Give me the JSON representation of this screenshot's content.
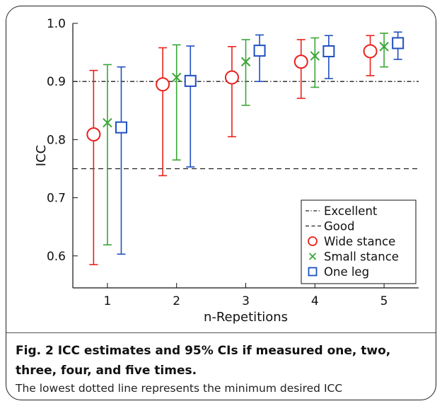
{
  "caption": {
    "title": "Fig. 2   ICC estimates and 95% CIs if measured one, two, three, four, and five times.",
    "note": "The lowest dotted line represents the minimum desired ICC"
  },
  "chart_data": {
    "type": "scatter",
    "xlabel": "n-Repetitions",
    "ylabel": "ICC",
    "x_ticks": [
      1,
      2,
      3,
      4,
      5
    ],
    "y_ticks": [
      0.6,
      0.7,
      0.8,
      0.9,
      1.0
    ],
    "y_tick_labels": [
      "0.6",
      "0.7",
      "0.8",
      "0.9",
      "1.0"
    ],
    "xlim": [
      0.5,
      5.5
    ],
    "ylim": [
      0.545,
      1.0
    ],
    "grid": false,
    "legend_position": "bottom-right",
    "reference_lines": [
      {
        "name": "Excellent",
        "y": 0.9,
        "style": "dash-dot",
        "color": "#222222"
      },
      {
        "name": "Good",
        "y": 0.75,
        "style": "dashed",
        "color": "#222222"
      }
    ],
    "series": [
      {
        "name": "Wide stance",
        "marker": "circle",
        "color": "#e8211d",
        "x_offset": -0.2,
        "x": [
          1,
          2,
          3,
          4,
          5
        ],
        "values": [
          0.809,
          0.895,
          0.907,
          0.934,
          0.952
        ],
        "ci_lower": [
          0.585,
          0.738,
          0.805,
          0.871,
          0.91
        ],
        "ci_upper": [
          0.919,
          0.958,
          0.96,
          0.972,
          0.979
        ]
      },
      {
        "name": "Small stance",
        "marker": "x",
        "color": "#3aa636",
        "x_offset": 0,
        "x": [
          1,
          2,
          3,
          4,
          5
        ],
        "values": [
          0.829,
          0.907,
          0.934,
          0.944,
          0.96
        ],
        "ci_lower": [
          0.619,
          0.765,
          0.859,
          0.89,
          0.925
        ],
        "ci_upper": [
          0.929,
          0.963,
          0.972,
          0.975,
          0.983
        ]
      },
      {
        "name": "One leg",
        "marker": "square",
        "color": "#1f4fbf",
        "x_offset": 0.2,
        "x": [
          1,
          2,
          3,
          4,
          5
        ],
        "values": [
          0.821,
          0.901,
          0.953,
          0.952,
          0.966
        ],
        "ci_lower": [
          0.603,
          0.753,
          0.9,
          0.905,
          0.938
        ],
        "ci_upper": [
          0.925,
          0.961,
          0.98,
          0.979,
          0.985
        ]
      }
    ]
  }
}
